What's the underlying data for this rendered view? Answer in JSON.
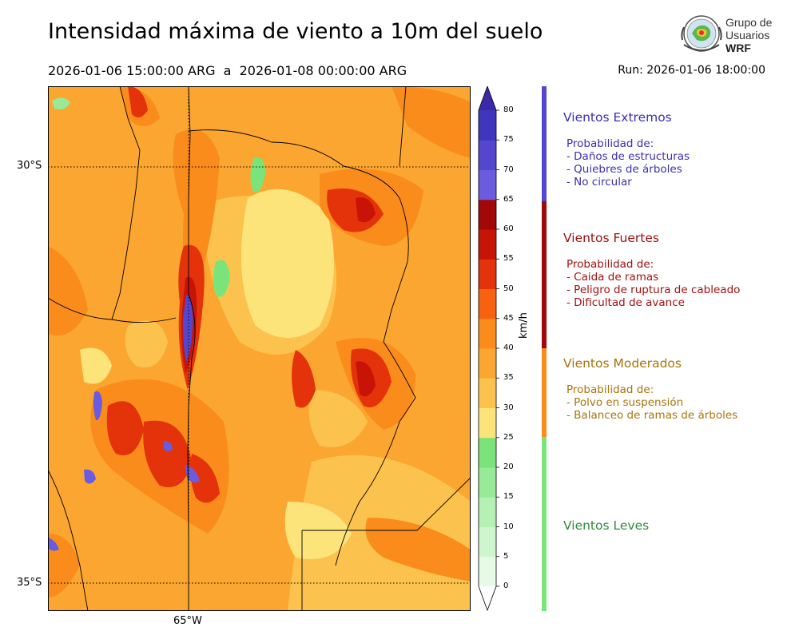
{
  "title": "Intensidad máxima de viento a 10m del suelo",
  "period": "2026-01-06 15:00:00 ARG  a  2026-01-08 00:00:00 ARG",
  "run": "Run: 2026-01-06 18:00:00",
  "logo": {
    "line1": "Grupo de",
    "line2": "Usuarios",
    "line3": "WRF"
  },
  "map": {
    "lat_labels": [
      "30°S",
      "35°S"
    ],
    "lon_labels": [
      "65°W"
    ]
  },
  "colorbar": {
    "unit": "km/h",
    "ticks": [
      "0",
      "5",
      "10",
      "15",
      "20",
      "25",
      "30",
      "35",
      "40",
      "45",
      "50",
      "55",
      "60",
      "65",
      "70",
      "75",
      "80"
    ],
    "colors": [
      "#e6fae6",
      "#cff5cf",
      "#b5f0b5",
      "#97ea97",
      "#7ae47a",
      "#fde47a",
      "#fcc24e",
      "#fba630",
      "#fa8c1b",
      "#f8620f",
      "#e4320b",
      "#c81407",
      "#a20808",
      "#6b5bde",
      "#5347d0",
      "#4035bd",
      "#3a2aa8"
    ]
  },
  "categories": [
    {
      "title": "Vientos Extremos",
      "color": "#3b2fb5",
      "lines": [
        "Probabilidad de:",
        "- Daños de estructuras",
        "- Quiebres de árboles",
        "- No circular"
      ]
    },
    {
      "title": "Vientos Fuertes",
      "color": "#a50f0f",
      "lines": [
        "Probabilidad de:",
        "- Caida de ramas",
        "- Peligro de ruptura de cableado",
        "- Dificultad de avance"
      ]
    },
    {
      "title": "Vientos Moderados",
      "color": "#a8740b",
      "lines": [
        "Probabilidad de:",
        "- Polvo en suspensión",
        "- Balanceo de ramas de árboles"
      ]
    },
    {
      "title": "Vientos Leves",
      "color": "#2e8b3c",
      "lines": []
    }
  ]
}
